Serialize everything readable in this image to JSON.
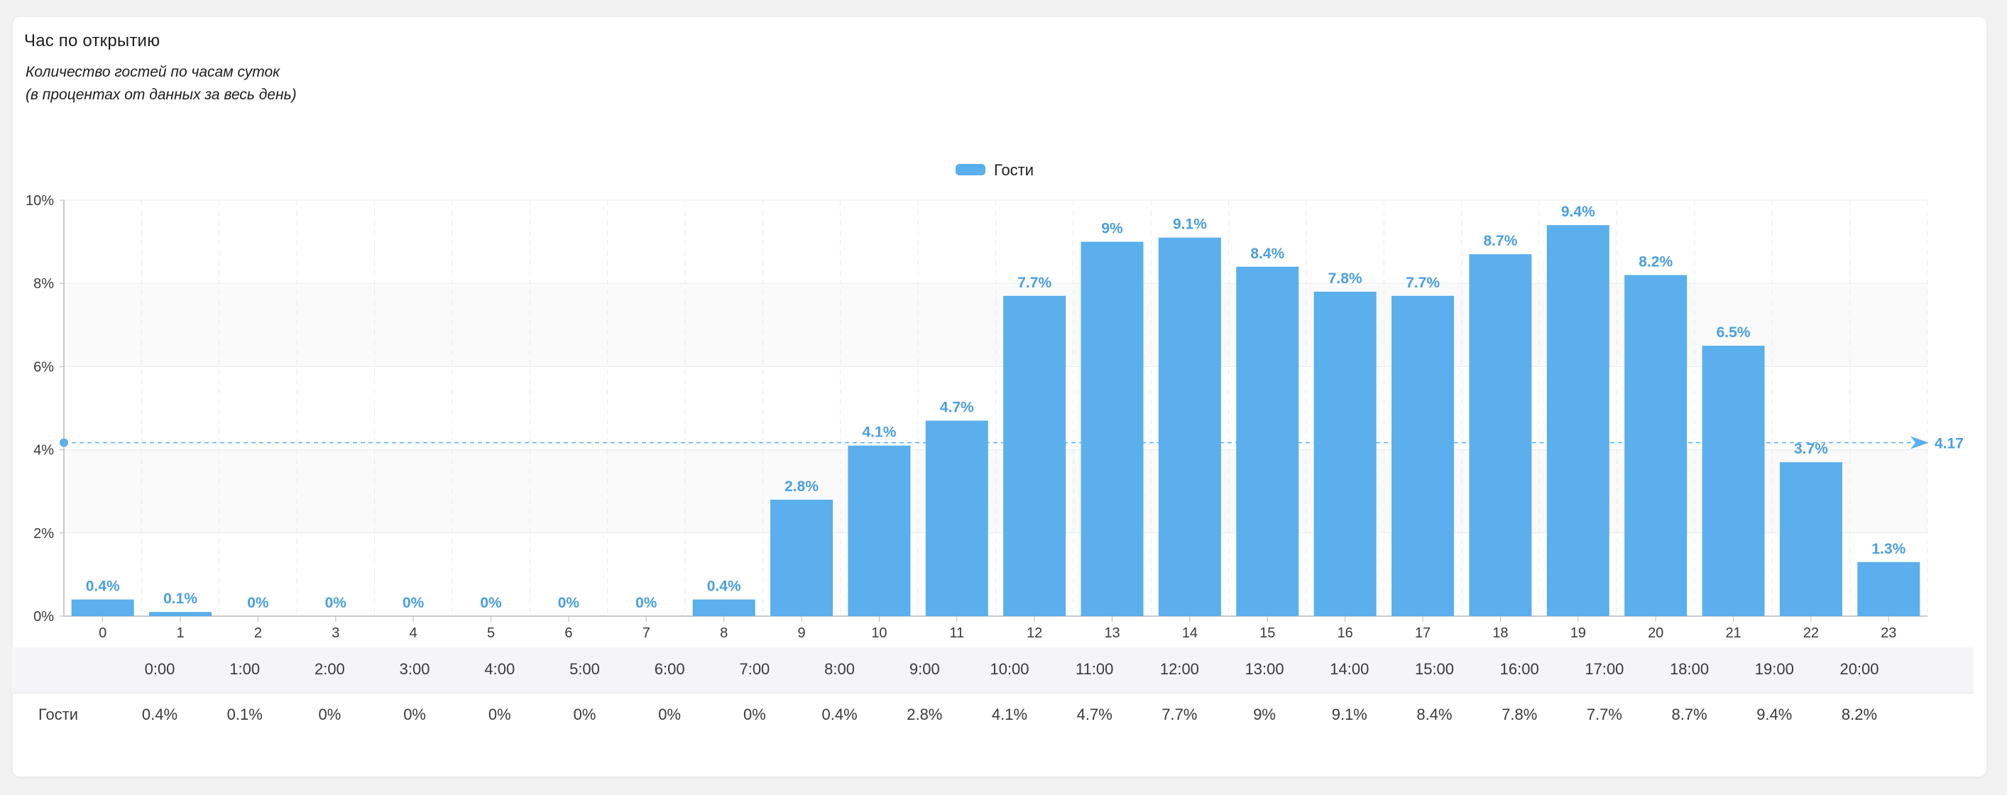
{
  "header": {
    "title": "Час по открытию",
    "subtitle_line1": "Количество гостей по часам суток",
    "subtitle_line2": "(в процентах от данных за весь день)"
  },
  "colors": {
    "bar": "#5aafec",
    "label": "#4a9fe0",
    "grid": "#ececf0",
    "axis": "#b8b8c0",
    "avg_line": "#5aafec",
    "band": "#fafafa"
  },
  "chart_data": {
    "type": "bar",
    "title": "Час по открытию",
    "categories": [
      "0",
      "1",
      "2",
      "3",
      "4",
      "5",
      "6",
      "7",
      "8",
      "9",
      "10",
      "11",
      "12",
      "13",
      "14",
      "15",
      "16",
      "17",
      "18",
      "19",
      "20",
      "21",
      "22",
      "23"
    ],
    "series": [
      {
        "name": "Гости",
        "values": [
          0.4,
          0.1,
          0,
          0,
          0,
          0,
          0,
          0,
          0.4,
          2.8,
          4.1,
          4.7,
          7.7,
          9,
          9.1,
          8.4,
          7.8,
          7.7,
          8.7,
          9.4,
          8.2,
          6.5,
          3.7,
          1.3
        ]
      }
    ],
    "value_labels": [
      "0.4%",
      "0.1%",
      "0%",
      "0%",
      "0%",
      "0%",
      "0%",
      "0%",
      "0.4%",
      "2.8%",
      "4.1%",
      "4.7%",
      "7.7%",
      "9%",
      "9.1%",
      "8.4%",
      "7.8%",
      "7.7%",
      "8.7%",
      "9.4%",
      "8.2%",
      "6.5%",
      "3.7%",
      "1.3%"
    ],
    "ylim": [
      0,
      10
    ],
    "y_ticks": [
      0,
      2,
      4,
      6,
      8,
      10
    ],
    "y_tick_labels": [
      "0%",
      "2%",
      "4%",
      "6%",
      "8%",
      "10%"
    ],
    "average": 4.17,
    "average_label": "4.17",
    "legend": {
      "label": "Гости",
      "position": "top-center"
    },
    "grid": true,
    "xlabel": "",
    "ylabel": ""
  },
  "table": {
    "row_label": "Гости",
    "columns": [
      "0:00",
      "1:00",
      "2:00",
      "3:00",
      "4:00",
      "5:00",
      "6:00",
      "7:00",
      "8:00",
      "9:00",
      "10:00",
      "11:00",
      "12:00",
      "13:00",
      "14:00",
      "15:00",
      "16:00",
      "17:00",
      "18:00",
      "19:00",
      "20:00"
    ],
    "values": [
      "0.4%",
      "0.1%",
      "0%",
      "0%",
      "0%",
      "0%",
      "0%",
      "0%",
      "0.4%",
      "2.8%",
      "4.1%",
      "4.7%",
      "7.7%",
      "9%",
      "9.1%",
      "8.4%",
      "7.8%",
      "7.7%",
      "8.7%",
      "9.4%",
      "8.2%"
    ]
  }
}
